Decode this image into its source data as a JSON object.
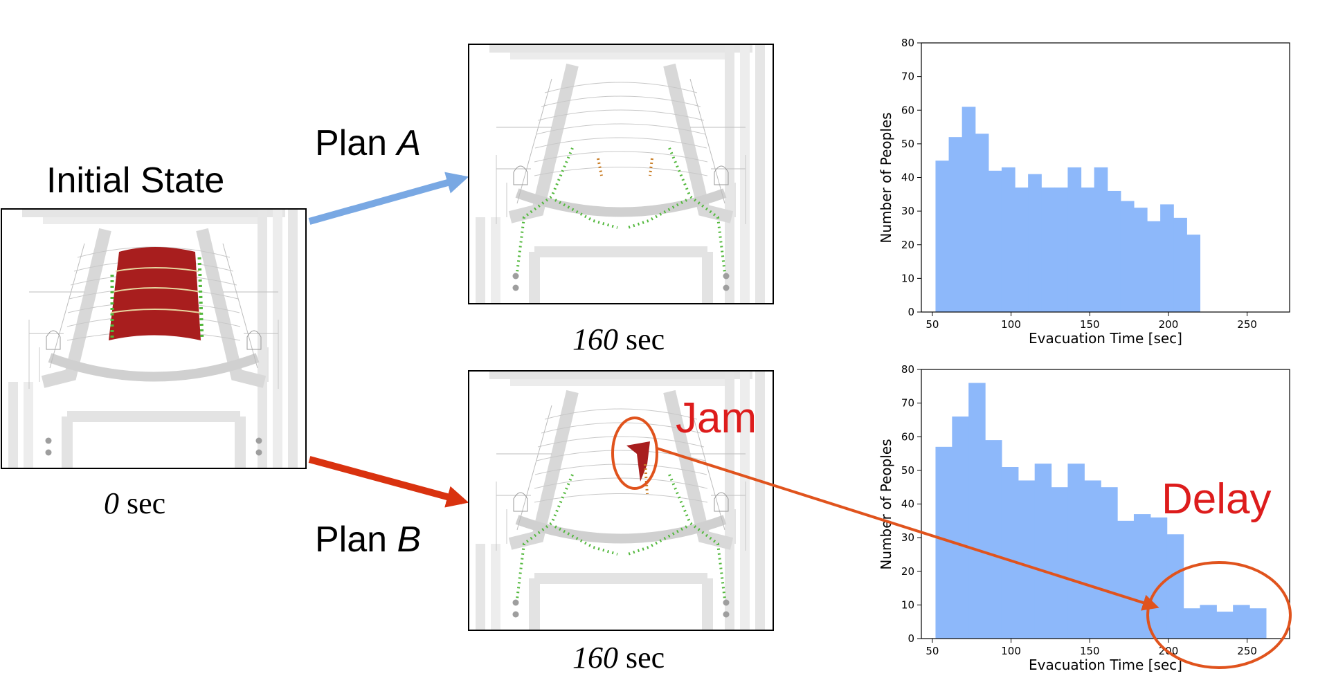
{
  "labels": {
    "initial_state": "Initial State",
    "plan_a_prefix": "Plan ",
    "plan_a_letter": "A",
    "plan_b_prefix": "Plan ",
    "plan_b_letter": "B",
    "time_initial_num": "0",
    "time_a_num": "160",
    "time_b_num": "160",
    "time_unit": " sec",
    "jam": "Jam",
    "delay": "Delay"
  },
  "colors": {
    "arrow_a": "#79a8e3",
    "arrow_b": "#d9320f",
    "annotation": "#e0531d",
    "annotation_text": "#dd1c1c",
    "bar": "#8db8fa",
    "agent_red": "#a81e1e",
    "agent_green": "#52b83c"
  },
  "chart_data": [
    {
      "type": "bar",
      "xlabel": "Evacuation Time [sec]",
      "ylabel": "Number of Peoples",
      "xlim": [
        43,
        277
      ],
      "ylim": [
        0,
        80
      ],
      "xticks": [
        50,
        100,
        150,
        200,
        250
      ],
      "yticks": [
        0,
        10,
        20,
        30,
        40,
        50,
        60,
        70,
        80
      ],
      "bin_start": 52,
      "bin_width": 8.4,
      "values": [
        45,
        52,
        61,
        53,
        42,
        43,
        37,
        41,
        37,
        37,
        43,
        37,
        43,
        36,
        33,
        31,
        27,
        32,
        28,
        23
      ]
    },
    {
      "type": "bar",
      "xlabel": "Evacuation Time [sec]",
      "ylabel": "Number of Peoples",
      "xlim": [
        43,
        277
      ],
      "ylim": [
        0,
        80
      ],
      "xticks": [
        50,
        100,
        150,
        200,
        250
      ],
      "yticks": [
        0,
        10,
        20,
        30,
        40,
        50,
        60,
        70,
        80
      ],
      "bin_start": 52,
      "bin_width": 10.5,
      "values": [
        57,
        66,
        76,
        59,
        51,
        47,
        52,
        45,
        52,
        47,
        45,
        35,
        37,
        36,
        31,
        9,
        10,
        8,
        10,
        9
      ]
    }
  ]
}
